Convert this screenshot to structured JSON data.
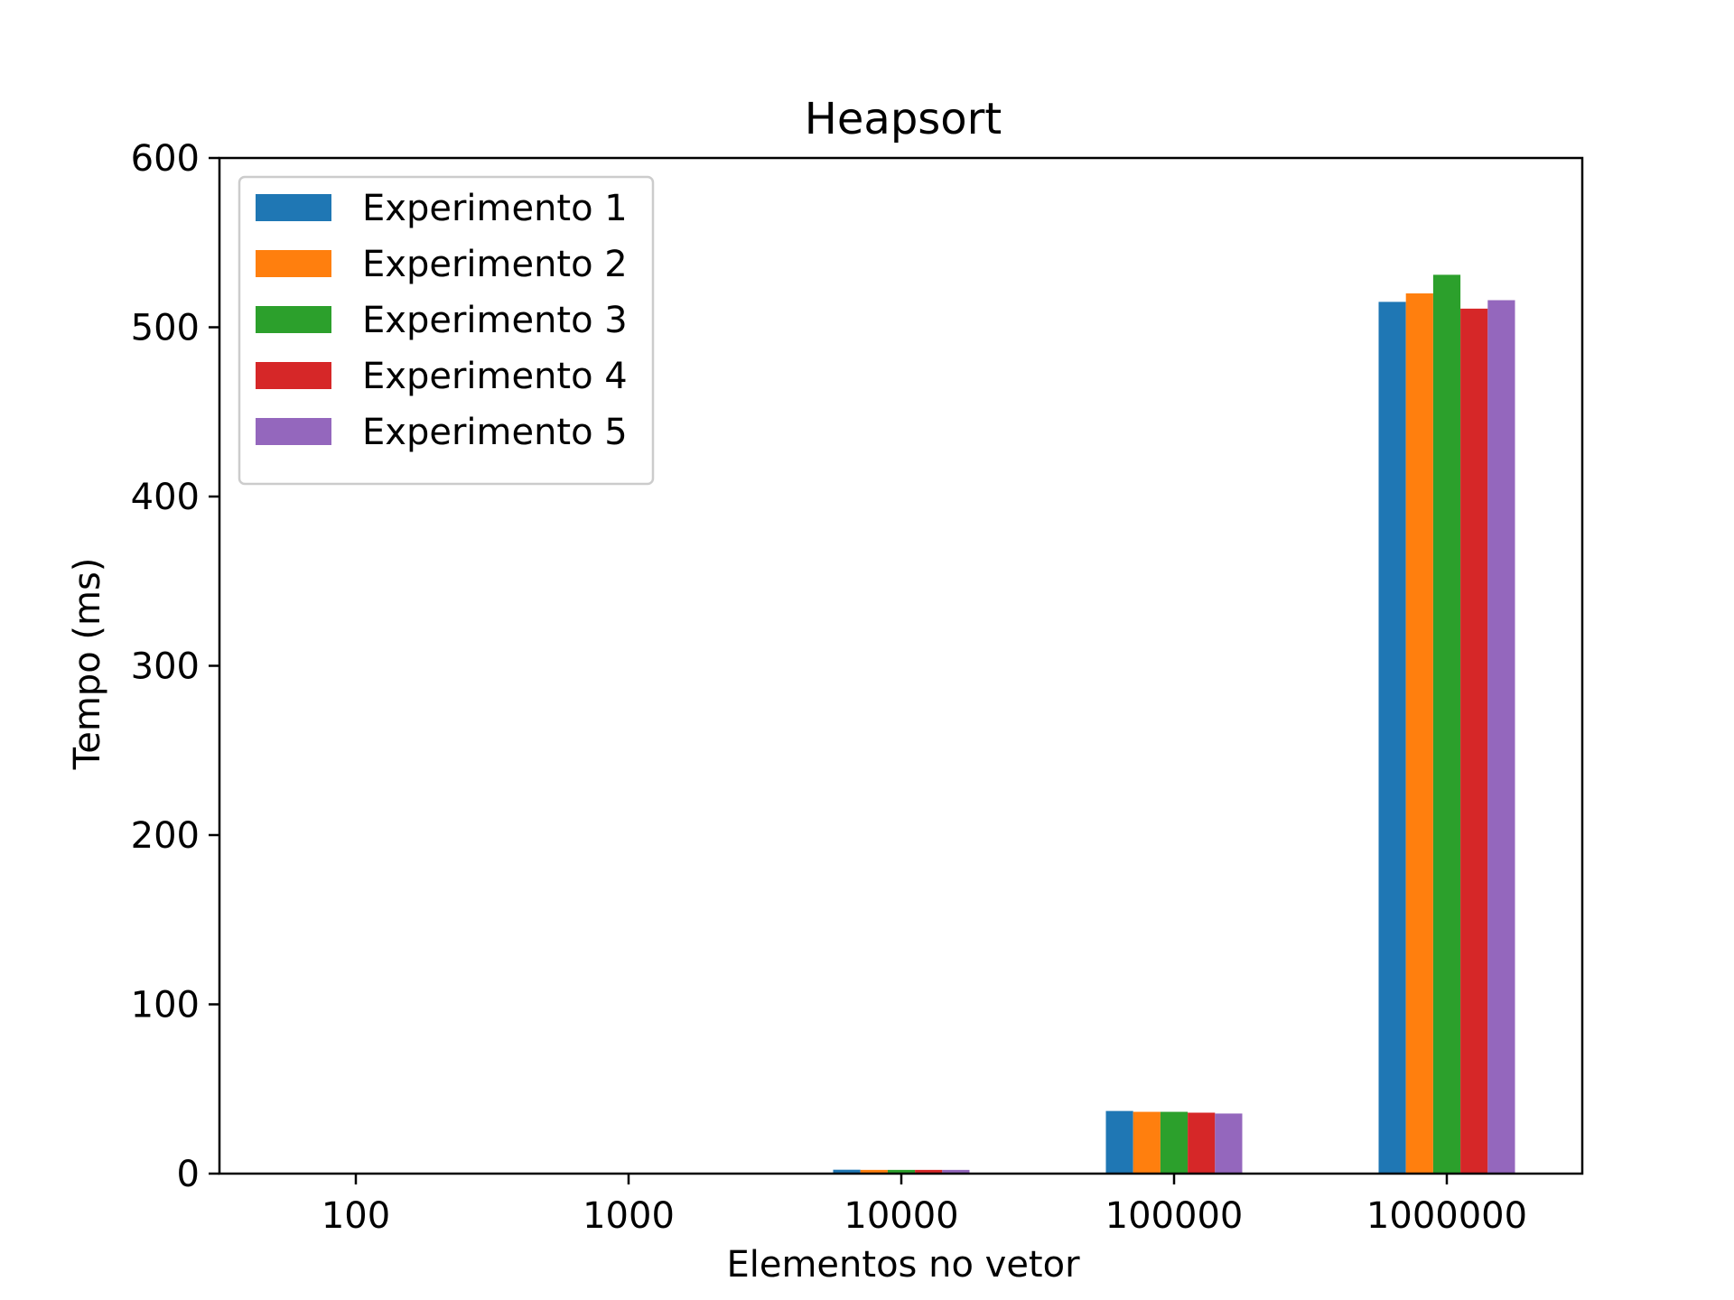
{
  "chart_data": {
    "type": "bar",
    "title": "Heapsort",
    "xlabel": "Elementos no vetor",
    "ylabel": "Tempo (ms)",
    "categories": [
      "100",
      "1000",
      "10000",
      "100000",
      "1000000"
    ],
    "ylim": [
      0,
      600
    ],
    "yticks": [
      0,
      100,
      200,
      300,
      400,
      500,
      600
    ],
    "grid": false,
    "legend_position": "top-left",
    "series": [
      {
        "name": "Experimento 1",
        "color": "#1f77b4",
        "values": [
          0.02,
          0.2,
          2.3,
          37,
          515
        ]
      },
      {
        "name": "Experimento 2",
        "color": "#ff7f0e",
        "values": [
          0.02,
          0.2,
          2.2,
          36.5,
          520
        ]
      },
      {
        "name": "Experimento 3",
        "color": "#2ca02c",
        "values": [
          0.02,
          0.2,
          2.2,
          36.5,
          531
        ]
      },
      {
        "name": "Experimento 4",
        "color": "#d62728",
        "values": [
          0.02,
          0.2,
          2.2,
          36,
          511
        ]
      },
      {
        "name": "Experimento 5",
        "color": "#9467bd",
        "values": [
          0.02,
          0.2,
          2.2,
          35.5,
          516
        ]
      }
    ]
  }
}
